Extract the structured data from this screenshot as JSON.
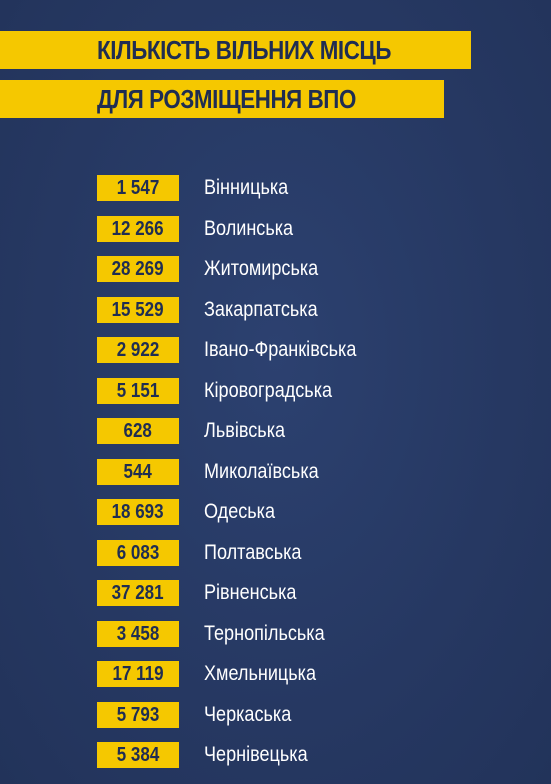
{
  "title": {
    "line1": "КІЛЬКІСТЬ ВІЛЬНИХ МІСЦЬ",
    "line2": "ДЛЯ РОЗМІЩЕННЯ ВПО"
  },
  "colors": {
    "background": "#273a63",
    "accent": "#f5c800",
    "text_dark": "#1f2d52",
    "text_light": "#ffffff"
  },
  "rows": [
    {
      "value": "1 547",
      "region": "Вінницька"
    },
    {
      "value": "12 266",
      "region": "Волинська"
    },
    {
      "value": "28 269",
      "region": "Житомирська"
    },
    {
      "value": "15 529",
      "region": "Закарпатська"
    },
    {
      "value": "2 922",
      "region": "Івано-Франківська"
    },
    {
      "value": "5 151",
      "region": "Кіровоградська"
    },
    {
      "value": "628",
      "region": "Львівська"
    },
    {
      "value": "544",
      "region": "Миколаївська"
    },
    {
      "value": "18 693",
      "region": "Одеська"
    },
    {
      "value": "6 083",
      "region": "Полтавська"
    },
    {
      "value": "37 281",
      "region": "Рівненська"
    },
    {
      "value": "3 458",
      "region": "Тернопільська"
    },
    {
      "value": "17 119",
      "region": "Хмельницька"
    },
    {
      "value": "5 793",
      "region": "Черкаська"
    },
    {
      "value": "5 384",
      "region": "Чернівецька"
    }
  ]
}
